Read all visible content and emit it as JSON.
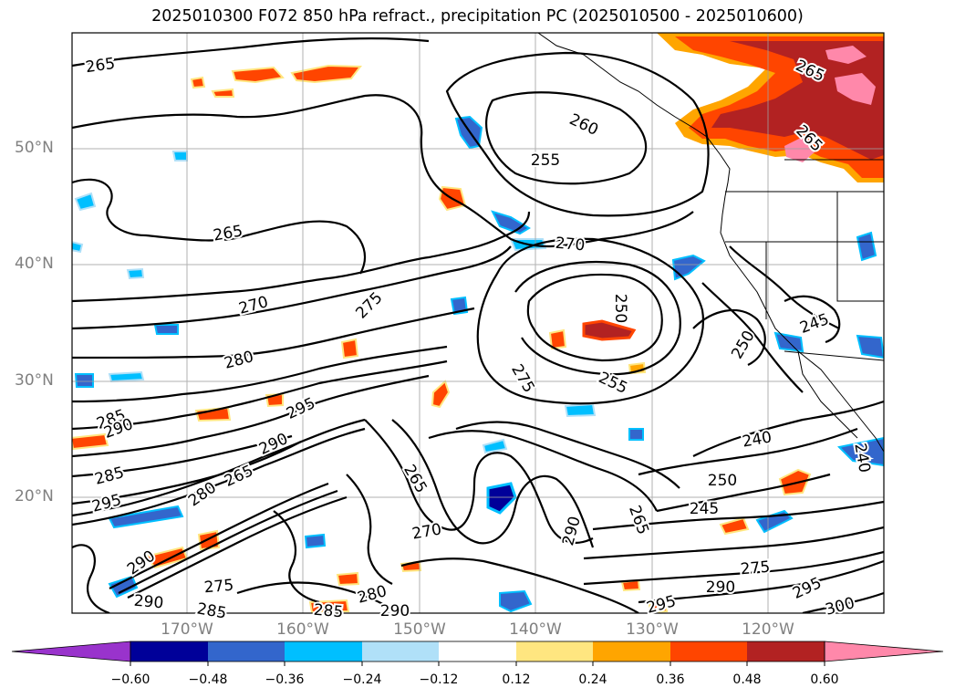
{
  "title": "2025010300 F072 850 hPa refract., precipitation PC (2025010500 - 2025010600)",
  "map": {
    "longitude_labels": [
      "170°W",
      "160°W",
      "150°W",
      "140°W",
      "130°W",
      "120°W"
    ],
    "latitude_labels": [
      "50°N",
      "40°N",
      "30°N",
      "20°N"
    ],
    "contour_labels": [
      {
        "text": "265"
      },
      {
        "text": "260"
      },
      {
        "text": "255"
      },
      {
        "text": "265"
      },
      {
        "text": "265"
      },
      {
        "text": "265"
      },
      {
        "text": "270"
      },
      {
        "text": "275"
      },
      {
        "text": "270"
      },
      {
        "text": "250"
      },
      {
        "text": "245"
      },
      {
        "text": "250"
      },
      {
        "text": "280"
      },
      {
        "text": "275"
      },
      {
        "text": "255"
      },
      {
        "text": "295"
      },
      {
        "text": "285"
      },
      {
        "text": "290"
      },
      {
        "text": "290"
      },
      {
        "text": "285"
      },
      {
        "text": "295"
      },
      {
        "text": "265"
      },
      {
        "text": "280"
      },
      {
        "text": "265"
      },
      {
        "text": "240"
      },
      {
        "text": "250"
      },
      {
        "text": "245"
      },
      {
        "text": "290"
      },
      {
        "text": "265"
      },
      {
        "text": "270"
      },
      {
        "text": "240"
      },
      {
        "text": "290"
      },
      {
        "text": "280"
      },
      {
        "text": "275"
      },
      {
        "text": "290"
      },
      {
        "text": "285"
      },
      {
        "text": "285"
      },
      {
        "text": "290"
      },
      {
        "text": "295"
      },
      {
        "text": "290"
      },
      {
        "text": "275"
      },
      {
        "text": "295"
      },
      {
        "text": "300"
      }
    ]
  },
  "colorbar": {
    "tick_labels": [
      "−0.60",
      "−0.48",
      "−0.36",
      "−0.24",
      "−0.12",
      "0.12",
      "0.24",
      "0.36",
      "0.48",
      "0.60"
    ],
    "colors": [
      "#9933cc",
      "#000099",
      "#3366cc",
      "#00bfff",
      "#b0e0f8",
      "#ffffff",
      "#ffe680",
      "#ffa500",
      "#ff4500",
      "#b22222",
      "#ff88aa"
    ]
  },
  "palette": {
    "negative": [
      "#3366cc",
      "#00bfff",
      "#b0e0f8",
      "#000099"
    ],
    "positive": [
      "#ffe680",
      "#ffa500",
      "#ff4500",
      "#b22222",
      "#ff88aa"
    ]
  }
}
